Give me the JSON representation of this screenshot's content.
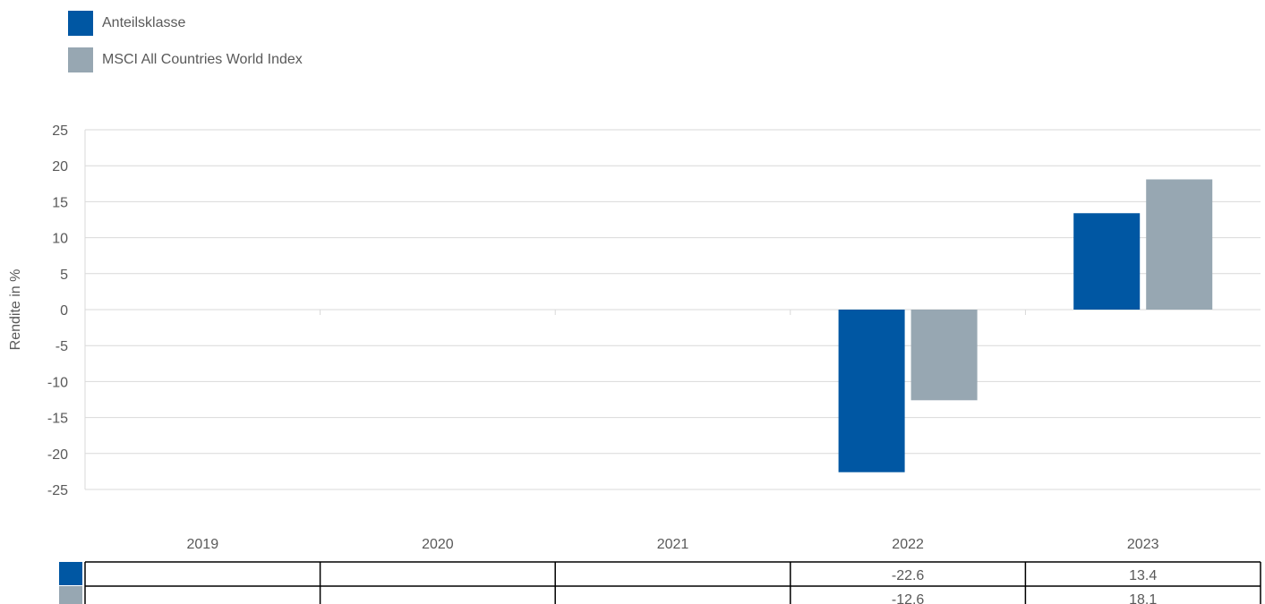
{
  "chart_data": {
    "type": "bar",
    "categories": [
      "2019",
      "2020",
      "2021",
      "2022",
      "2023"
    ],
    "series": [
      {
        "name": "Anteilsklasse",
        "color": "#0057a3",
        "values": [
          null,
          null,
          null,
          -22.6,
          13.4
        ]
      },
      {
        "name": "MSCI All Countries World Index",
        "color": "#97a7b2",
        "values": [
          null,
          null,
          null,
          -12.6,
          18.1
        ]
      }
    ],
    "ylabel": "Rendite in %",
    "ylim": [
      -25,
      25
    ],
    "yticks": [
      25,
      20,
      15,
      10,
      5,
      0,
      -5,
      -10,
      -15,
      -20,
      -25
    ],
    "grid": true,
    "legend_position": "top-left",
    "data_table": true
  }
}
